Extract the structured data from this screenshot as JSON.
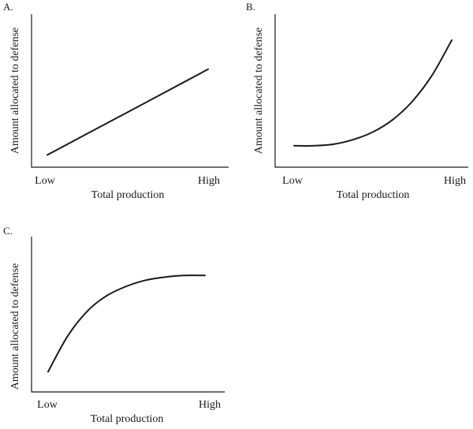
{
  "chart_data": [
    {
      "type": "line",
      "panel_label": "A.",
      "xlabel": "Total production",
      "ylabel": "Amount allocated to defense",
      "x_ticks": [
        "Low",
        "High"
      ],
      "shape": "linear-increasing",
      "x": [
        0,
        0.25,
        0.5,
        0.75,
        1
      ],
      "y": [
        0.08,
        0.22,
        0.36,
        0.5,
        0.64
      ],
      "xlim": [
        0,
        1
      ],
      "ylim": [
        0,
        1
      ]
    },
    {
      "type": "line",
      "panel_label": "B.",
      "xlabel": "Total production",
      "ylabel": "Amount allocated to defense",
      "x_ticks": [
        "Low",
        "High"
      ],
      "shape": "convex-increasing",
      "x": [
        0,
        0.125,
        0.25,
        0.375,
        0.5,
        0.625,
        0.75,
        0.875,
        1
      ],
      "y": [
        0.14,
        0.14,
        0.15,
        0.18,
        0.23,
        0.31,
        0.43,
        0.6,
        0.83
      ],
      "xlim": [
        0,
        1
      ],
      "ylim": [
        0,
        1
      ]
    },
    {
      "type": "line",
      "panel_label": "C.",
      "xlabel": "Total production",
      "ylabel": "Amount allocated to defense",
      "x_ticks": [
        "Low",
        "High"
      ],
      "shape": "concave-increasing",
      "x": [
        0,
        0.125,
        0.25,
        0.375,
        0.5,
        0.625,
        0.75,
        0.875,
        1
      ],
      "y": [
        0.13,
        0.36,
        0.52,
        0.62,
        0.68,
        0.72,
        0.74,
        0.75,
        0.75
      ],
      "xlim": [
        0,
        1
      ],
      "ylim": [
        0,
        1
      ]
    }
  ]
}
